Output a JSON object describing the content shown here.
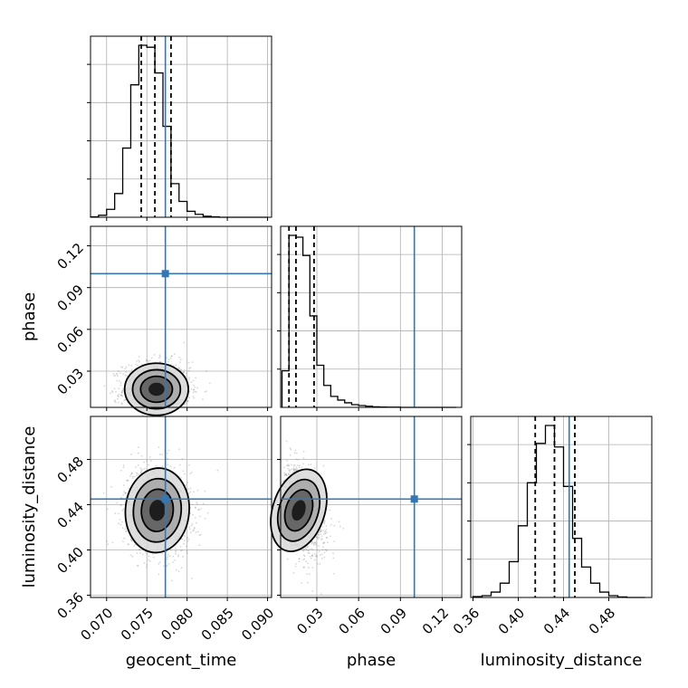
{
  "colors": {
    "truth": "#3477b4",
    "hist": "#000000",
    "grid": "#b0b0b0",
    "scatter": "#8c8c8c"
  },
  "chart_data": {
    "type": "corner",
    "parameters": [
      "geocent_time",
      "phase",
      "luminosity_distance"
    ],
    "truths": {
      "geocent_time": 0.0773,
      "phase": 0.1,
      "luminosity_distance": 0.445
    },
    "axes": {
      "geocent_time": {
        "xlabel": "geocent_time",
        "range": [
          0.068,
          0.0905
        ],
        "ticks": [
          0.07,
          0.075,
          0.08,
          0.085,
          0.09
        ],
        "tick_labels": [
          "0.070",
          "0.075",
          "0.080",
          "0.085",
          "0.090"
        ]
      },
      "phase": {
        "xlabel": "phase",
        "ylabel": "phase",
        "range": [
          0.004,
          0.134
        ],
        "ticks": [
          0.03,
          0.06,
          0.09,
          0.12
        ],
        "tick_labels": [
          "0.03",
          "0.06",
          "0.09",
          "0.12"
        ]
      },
      "luminosity_distance": {
        "xlabel": "luminosity_distance",
        "ylabel": "luminosity_distance",
        "range": [
          0.358,
          0.518
        ],
        "ticks": [
          0.36,
          0.4,
          0.44,
          0.48
        ],
        "tick_labels": [
          "0.36",
          "0.40",
          "0.44",
          "0.48"
        ]
      }
    },
    "histograms": {
      "geocent_time": {
        "bin_edges": [
          0.068,
          0.069,
          0.07,
          0.071,
          0.072,
          0.073,
          0.074,
          0.075,
          0.076,
          0.077,
          0.078,
          0.079,
          0.08,
          0.081,
          0.082,
          0.083,
          0.084,
          0.085,
          0.086,
          0.087,
          0.088,
          0.089,
          0.09
        ],
        "counts": [
          0.2,
          1,
          4,
          12,
          35,
          67,
          87,
          86,
          73,
          46,
          17,
          8,
          3,
          1.5,
          0.5,
          0.2,
          0,
          0,
          0,
          0,
          0,
          0
        ],
        "quantiles": [
          0.0743,
          0.076,
          0.078
        ]
      },
      "phase": {
        "bin_edges": [
          0.005,
          0.01,
          0.015,
          0.02,
          0.025,
          0.03,
          0.035,
          0.04,
          0.045,
          0.05,
          0.055,
          0.06,
          0.065,
          0.07,
          0.075,
          0.08,
          0.085,
          0.09,
          0.095,
          0.1,
          0.105,
          0.11,
          0.115,
          0.12,
          0.125,
          0.13
        ],
        "counts": [
          20,
          94,
          93,
          83,
          50,
          23,
          12,
          6,
          4,
          2.5,
          1.5,
          1,
          0.6,
          0.3,
          0.2,
          0.1,
          0.1,
          0,
          0,
          0,
          0,
          0,
          0,
          0,
          0
        ],
        "quantiles": [
          0.01,
          0.015,
          0.028
        ]
      },
      "luminosity_distance": {
        "bin_edges": [
          0.36,
          0.368,
          0.376,
          0.384,
          0.392,
          0.4,
          0.408,
          0.416,
          0.424,
          0.432,
          0.44,
          0.448,
          0.456,
          0.464,
          0.472,
          0.48,
          0.488,
          0.496,
          0.504,
          0.512
        ],
        "counts": [
          0.5,
          1,
          3,
          8,
          20,
          40,
          64,
          86,
          96,
          84,
          62,
          33,
          17,
          8,
          3,
          1,
          0.3,
          0,
          0
        ],
        "quantiles": [
          0.415,
          0.432,
          0.45
        ]
      }
    },
    "density_2d": [
      {
        "x": "geocent_time",
        "y": "phase",
        "center": [
          0.0762,
          0.017
        ],
        "sigma": [
          0.0018,
          0.0085
        ],
        "rho": 0.0
      },
      {
        "x": "geocent_time",
        "y": "luminosity_distance",
        "center": [
          0.0763,
          0.435
        ],
        "sigma": [
          0.0018,
          0.017
        ],
        "rho": -0.1
      },
      {
        "x": "phase",
        "y": "luminosity_distance",
        "center": [
          0.017,
          0.435
        ],
        "sigma": [
          0.0085,
          0.017
        ],
        "rho": -0.35
      }
    ]
  }
}
